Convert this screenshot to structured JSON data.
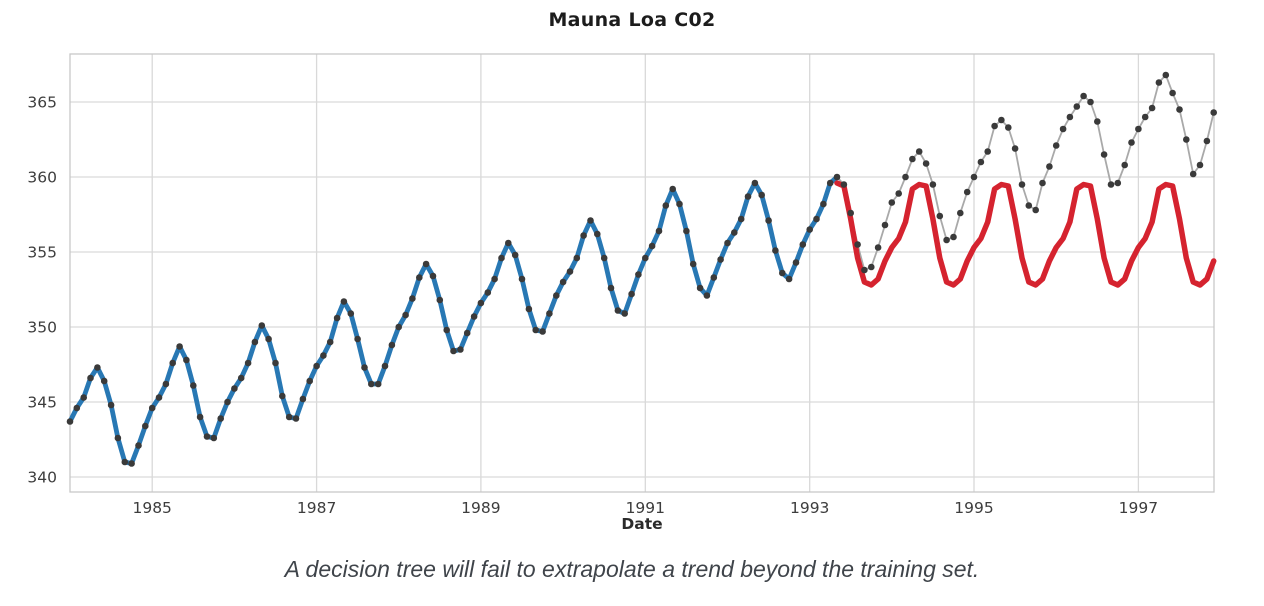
{
  "title": "Mauna Loa C02",
  "caption": "A decision tree will fail to extrapolate a trend beyond the training set.",
  "colors": {
    "background": "#ffffff",
    "grid": "#d9d9d9",
    "spine": "#c8c8c8",
    "train_line": "#2878b4",
    "prediction_line": "#d5232f",
    "observed_line": "#a9a9a9",
    "marker": "#3a3a3a",
    "tick_label": "#3d3d3d",
    "title_text": "#1c1c1c",
    "caption_text": "#3f444a"
  },
  "chart_data": {
    "type": "line",
    "title": "Mauna Loa C02",
    "xlabel": "Date",
    "ylabel": "",
    "xlim": [
      1984.0,
      1997.92
    ],
    "ylim": [
      339.0,
      368.2
    ],
    "x_ticks": [
      1985,
      1987,
      1989,
      1991,
      1993,
      1995,
      1997
    ],
    "y_ticks": [
      340,
      345,
      350,
      355,
      360,
      365
    ],
    "grid": true,
    "legend": "none",
    "sampling": "monthly",
    "series": [
      {
        "id": "train",
        "label": "Observed CO2 (ppm) - training data, thick blue line",
        "start": {
          "year": 1984,
          "month": 1
        },
        "values": [
          343.7,
          344.6,
          345.3,
          346.6,
          347.3,
          346.4,
          344.8,
          342.6,
          341.0,
          340.9,
          342.1,
          343.4,
          344.6,
          345.3,
          346.2,
          347.6,
          348.7,
          347.8,
          346.1,
          344.0,
          342.7,
          342.6,
          343.9,
          345.0,
          345.9,
          346.6,
          347.6,
          349.0,
          350.1,
          349.2,
          347.6,
          345.4,
          344.0,
          343.9,
          345.2,
          346.4,
          347.4,
          348.1,
          349.0,
          350.6,
          351.7,
          350.9,
          349.2,
          347.3,
          346.2,
          346.2,
          347.4,
          348.8,
          350.0,
          350.8,
          351.9,
          353.3,
          354.2,
          353.4,
          351.8,
          349.8,
          348.4,
          348.5,
          349.6,
          350.7,
          351.6,
          352.3,
          353.2,
          354.6,
          355.6,
          354.8,
          353.2,
          351.2,
          349.8,
          349.7,
          350.9,
          352.1,
          353.0,
          353.7,
          354.6,
          356.1,
          357.1,
          356.2,
          354.6,
          352.6,
          351.1,
          350.9,
          352.2,
          353.5,
          354.6,
          355.4,
          356.4,
          358.1,
          359.2,
          358.2,
          356.4,
          354.2,
          352.6,
          352.1,
          353.3,
          354.5,
          355.6,
          356.3,
          357.2,
          358.7,
          359.6,
          358.8,
          357.1,
          355.1,
          353.6,
          353.2,
          354.3,
          355.5,
          356.5,
          357.2,
          358.2,
          359.6,
          360.0
        ]
      },
      {
        "id": "test",
        "label": "Observed CO2 (ppm) - actual values after training cutoff, gray line with black markers",
        "start": {
          "year": 1993,
          "month": 6
        },
        "values": [
          359.5,
          357.6,
          355.5,
          353.8,
          354.0,
          355.3,
          356.8,
          358.3,
          358.9,
          360.0,
          361.2,
          361.7,
          360.9,
          359.5,
          357.4,
          355.8,
          356.0,
          357.6,
          359.0,
          360.0,
          361.0,
          361.7,
          363.4,
          363.8,
          363.3,
          361.9,
          359.5,
          358.1,
          357.8,
          359.6,
          360.7,
          362.1,
          363.2,
          364.0,
          364.7,
          365.4,
          365.0,
          363.7,
          361.5,
          359.5,
          359.6,
          360.8,
          362.3,
          363.2,
          364.0,
          364.6,
          366.3,
          366.8,
          365.6,
          364.5,
          362.5,
          360.2,
          360.8,
          362.4,
          364.3
        ]
      },
      {
        "id": "prediction",
        "label": "Decision tree prediction - repeats seasonal cycle with no trend, thick red line",
        "start": {
          "year": 1993,
          "month": 5
        },
        "values": [
          359.6,
          359.4,
          357.2,
          354.6,
          353.0,
          352.8,
          353.2,
          354.4,
          355.3,
          355.9,
          357.0,
          359.2,
          359.5,
          359.4,
          357.2,
          354.6,
          353.0,
          352.8,
          353.2,
          354.4,
          355.3,
          355.9,
          357.0,
          359.2,
          359.5,
          359.4,
          357.2,
          354.6,
          353.0,
          352.8,
          353.2,
          354.4,
          355.3,
          355.9,
          357.0,
          359.2,
          359.5,
          359.4,
          357.2,
          354.6,
          353.0,
          352.8,
          353.2,
          354.4,
          355.3,
          355.9,
          357.0,
          359.2,
          359.5,
          359.4,
          357.2,
          354.6,
          353.0,
          352.8,
          353.2,
          354.4
        ]
      }
    ]
  }
}
